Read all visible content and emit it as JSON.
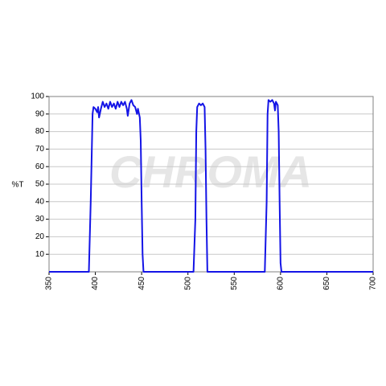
{
  "chart_data": {
    "type": "line",
    "y_label": "%T",
    "watermark": "CHROMA",
    "x": [
      350,
      393,
      395,
      397,
      398,
      400,
      402,
      403,
      404,
      406,
      408,
      410,
      412,
      414,
      416,
      418,
      420,
      422,
      424,
      426,
      428,
      430,
      432,
      434,
      435,
      437,
      439,
      441,
      443,
      445,
      446,
      448,
      449,
      450,
      451,
      452,
      506,
      508,
      509,
      510,
      512,
      514,
      516,
      518,
      519,
      520,
      521,
      583,
      585,
      586,
      587,
      589,
      591,
      593,
      594,
      595,
      597,
      598,
      599,
      600,
      601,
      700
    ],
    "series": [
      {
        "color": "#1414e6",
        "values": [
          0,
          0,
          40,
          90,
          94,
          93,
          91,
          94,
          88,
          93,
          97,
          94,
          96,
          93,
          97,
          94,
          96,
          93,
          97,
          94,
          97,
          95,
          97,
          93,
          89,
          96,
          98,
          95,
          94,
          90,
          93,
          88,
          75,
          40,
          10,
          0,
          0,
          30,
          80,
          94,
          96,
          95,
          96,
          94,
          70,
          30,
          0,
          0,
          40,
          90,
          98,
          97,
          98,
          96,
          92,
          97,
          95,
          80,
          40,
          5,
          0,
          0
        ]
      }
    ],
    "xlim": [
      350,
      700
    ],
    "xticks": [
      350,
      400,
      450,
      500,
      550,
      600,
      650,
      700
    ],
    "ylim": [
      0,
      100
    ],
    "yticks": [
      10,
      20,
      30,
      40,
      50,
      60,
      70,
      80,
      90,
      100
    ],
    "grid": true
  }
}
